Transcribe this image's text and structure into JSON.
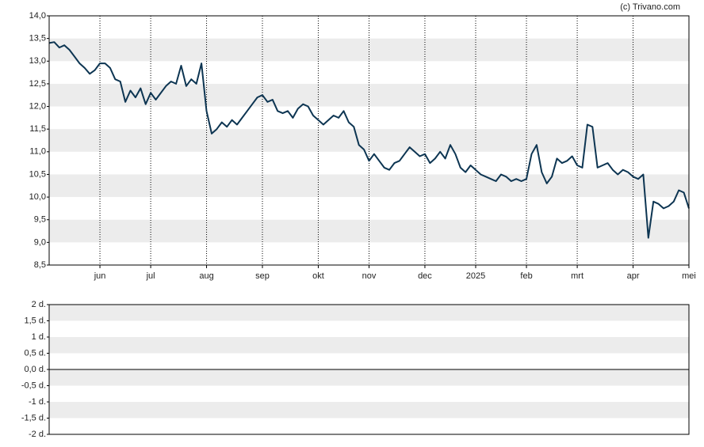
{
  "chart_data": [
    {
      "type": "line",
      "source": "(c) Trivano.com",
      "categories": [
        null,
        null,
        null,
        null,
        null,
        null,
        null,
        null,
        null,
        null,
        "jun",
        null,
        null,
        null,
        null,
        null,
        null,
        null,
        null,
        null,
        "jul",
        null,
        null,
        null,
        null,
        null,
        null,
        null,
        null,
        null,
        null,
        "aug",
        null,
        null,
        null,
        null,
        null,
        null,
        null,
        null,
        null,
        null,
        "sep",
        null,
        null,
        null,
        null,
        null,
        null,
        null,
        null,
        null,
        null,
        "okt",
        null,
        null,
        null,
        null,
        null,
        null,
        null,
        null,
        null,
        "nov",
        null,
        null,
        null,
        null,
        null,
        null,
        null,
        null,
        null,
        null,
        "dec",
        null,
        null,
        null,
        null,
        null,
        null,
        null,
        null,
        null,
        "2025",
        null,
        null,
        null,
        null,
        null,
        null,
        null,
        null,
        null,
        "feb",
        null,
        null,
        null,
        null,
        null,
        null,
        null,
        null,
        null,
        "mrt",
        null,
        null,
        null,
        null,
        null,
        null,
        null,
        null,
        null,
        null,
        "apr",
        null,
        null,
        null,
        null,
        null,
        null,
        null,
        null,
        null,
        null,
        "mei"
      ],
      "series": [
        {
          "color": "#0d3552",
          "values": [
            13.4,
            13.42,
            13.3,
            13.35,
            13.25,
            13.1,
            12.95,
            12.85,
            12.72,
            12.8,
            12.95,
            12.95,
            12.85,
            12.6,
            12.55,
            12.1,
            12.35,
            12.2,
            12.4,
            12.05,
            12.3,
            12.15,
            12.3,
            12.45,
            12.55,
            12.5,
            12.9,
            12.45,
            12.6,
            12.5,
            12.95,
            11.9,
            11.4,
            11.5,
            11.65,
            11.55,
            11.7,
            11.6,
            11.75,
            11.9,
            12.05,
            12.2,
            12.25,
            12.1,
            12.15,
            11.9,
            11.85,
            11.9,
            11.75,
            11.95,
            12.05,
            12.0,
            11.8,
            11.7,
            11.6,
            11.7,
            11.8,
            11.75,
            11.9,
            11.65,
            11.55,
            11.15,
            11.05,
            10.8,
            10.95,
            10.8,
            10.65,
            10.6,
            10.75,
            10.8,
            10.95,
            11.1,
            11.0,
            10.9,
            10.95,
            10.75,
            10.85,
            11.0,
            10.85,
            11.15,
            10.95,
            10.65,
            10.55,
            10.7,
            10.6,
            10.5,
            10.45,
            10.4,
            10.35,
            10.5,
            10.45,
            10.35,
            10.4,
            10.35,
            10.4,
            10.95,
            11.15,
            10.55,
            10.3,
            10.45,
            10.85,
            10.75,
            10.8,
            10.9,
            10.7,
            10.65,
            11.6,
            11.55,
            10.65,
            10.7,
            10.75,
            10.6,
            10.5,
            10.6,
            10.55,
            10.45,
            10.4,
            10.5,
            9.1,
            9.9,
            9.85,
            9.75,
            9.8,
            9.9,
            10.15,
            10.1,
            9.75
          ]
        }
      ],
      "ylim": [
        8.5,
        14
      ],
      "yticks": [
        {
          "value": 8.5,
          "label": "8,5"
        },
        {
          "value": 9,
          "label": "9,0"
        },
        {
          "value": 9.5,
          "label": "9,5"
        },
        {
          "value": 10,
          "label": "10,0"
        },
        {
          "value": 10.5,
          "label": "10,5"
        },
        {
          "value": 11,
          "label": "11,0"
        },
        {
          "value": 11.5,
          "label": "11,5"
        },
        {
          "value": 12,
          "label": "12,0"
        },
        {
          "value": 12.5,
          "label": "12,5"
        },
        {
          "value": 13,
          "label": "13,0"
        },
        {
          "value": 13.5,
          "label": "13,5"
        },
        {
          "value": 14,
          "label": "14,0"
        }
      ]
    },
    {
      "type": "line",
      "ylim": [
        -2,
        2
      ],
      "yticks": [
        {
          "value": -2,
          "label": "-2 d."
        },
        {
          "value": -1.5,
          "label": "-1,5 d."
        },
        {
          "value": -1,
          "label": "-1 d."
        },
        {
          "value": -0.5,
          "label": "-0,5 d."
        },
        {
          "value": 0,
          "label": "0,0 d."
        },
        {
          "value": 0.5,
          "label": "0,5 d."
        },
        {
          "value": 1,
          "label": "1 d."
        },
        {
          "value": 1.5,
          "label": "1,5 d."
        },
        {
          "value": 2,
          "label": "2 d."
        }
      ]
    }
  ]
}
